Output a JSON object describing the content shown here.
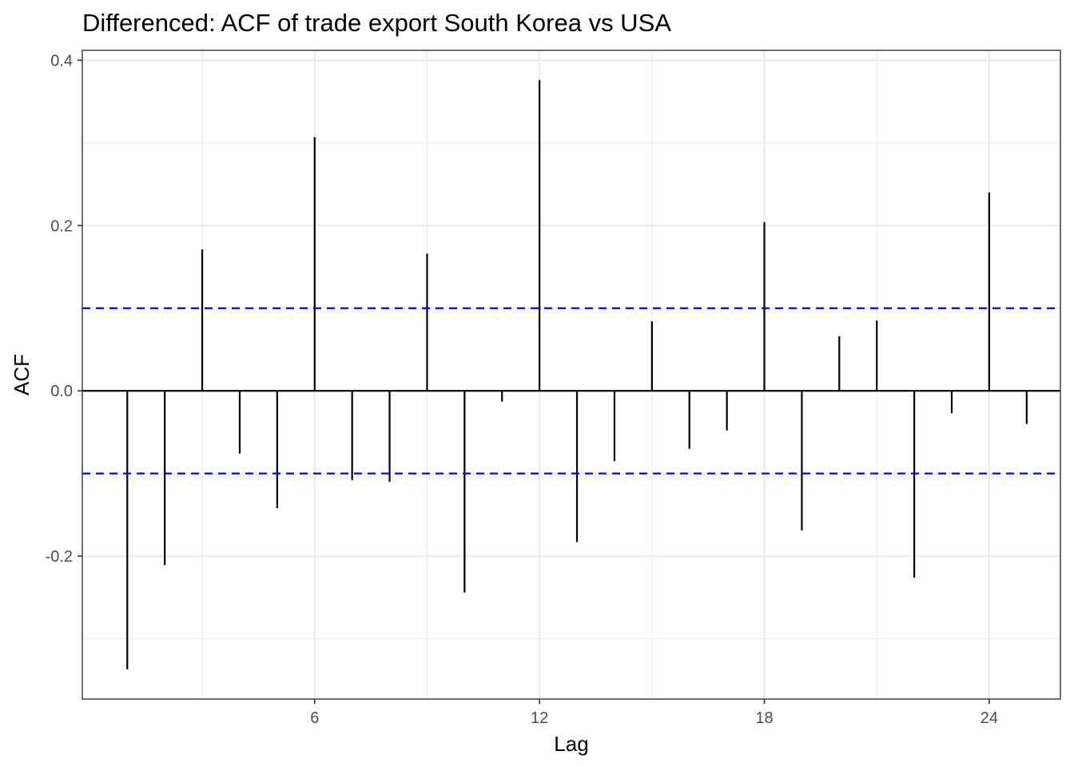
{
  "chart_data": {
    "type": "bar",
    "title": "Differenced: ACF of trade export South Korea vs USA",
    "xlabel": "Lag",
    "ylabel": "ACF",
    "x": [
      1,
      2,
      3,
      4,
      5,
      6,
      7,
      8,
      9,
      10,
      11,
      12,
      13,
      14,
      15,
      16,
      17,
      18,
      19,
      20,
      21,
      22,
      23,
      24,
      25
    ],
    "values": [
      -0.337,
      -0.211,
      0.171,
      -0.076,
      -0.142,
      0.307,
      -0.108,
      -0.11,
      0.166,
      -0.244,
      -0.013,
      0.376,
      -0.183,
      -0.085,
      0.084,
      -0.07,
      -0.048,
      0.204,
      -0.169,
      0.066,
      0.085,
      -0.226,
      -0.027,
      0.24,
      -0.04
    ],
    "ci_bounds": [
      0.1,
      -0.1
    ],
    "xlim": [
      -0.2,
      25.9
    ],
    "ylim": [
      -0.373,
      0.412
    ],
    "x_ticks": [
      6,
      12,
      18,
      24
    ],
    "x_tick_labels": [
      "6",
      "12",
      "18",
      "24"
    ],
    "y_ticks": [
      -0.2,
      0.0,
      0.2,
      0.4
    ],
    "y_tick_labels": [
      "-0.2",
      "0.0",
      "0.2",
      "0.4"
    ],
    "grid": true,
    "colors": {
      "spike": "#000000",
      "ci": "#0000ff",
      "grid": "#ebebeb"
    }
  }
}
